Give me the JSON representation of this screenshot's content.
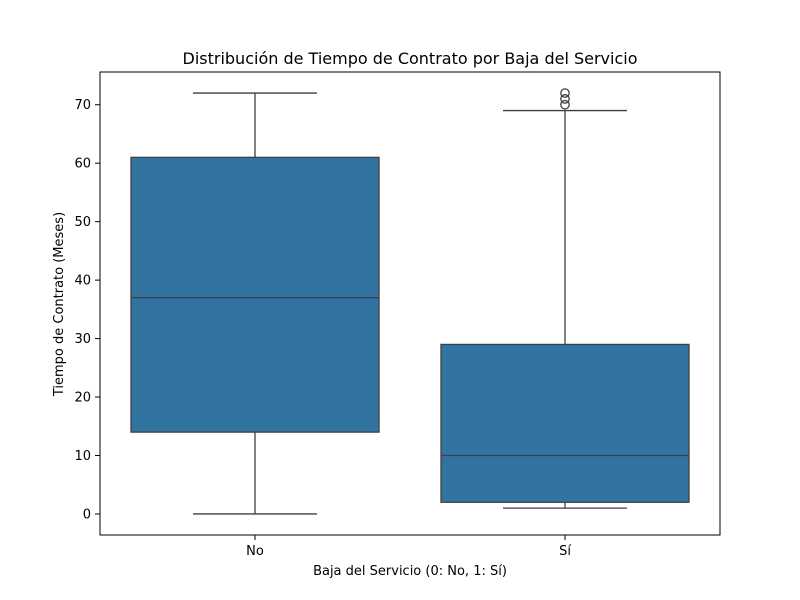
{
  "chart_data": {
    "type": "box",
    "title": "Distribución de Tiempo de Contrato por Baja del Servicio",
    "xlabel": "Baja del Servicio (0: No, 1: Sí)",
    "ylabel": "Tiempo de Contrato (Meses)",
    "categories": [
      "No",
      "Sí"
    ],
    "ylim": [
      -3.6,
      75.6
    ],
    "yticks": [
      0,
      10,
      20,
      30,
      40,
      50,
      60,
      70
    ],
    "grid": false,
    "boxes": [
      {
        "category": "No",
        "whisker_low": 0,
        "q1": 14,
        "median": 37,
        "q3": 61,
        "whisker_high": 72,
        "outliers": []
      },
      {
        "category": "Sí",
        "whisker_low": 1,
        "q1": 2,
        "median": 10,
        "q3": 29,
        "whisker_high": 69,
        "outliers": [
          70,
          71,
          72
        ]
      }
    ],
    "colors": {
      "box_fill": "#3274a1",
      "line": "#3f3f3f",
      "axis": "#000000"
    }
  }
}
